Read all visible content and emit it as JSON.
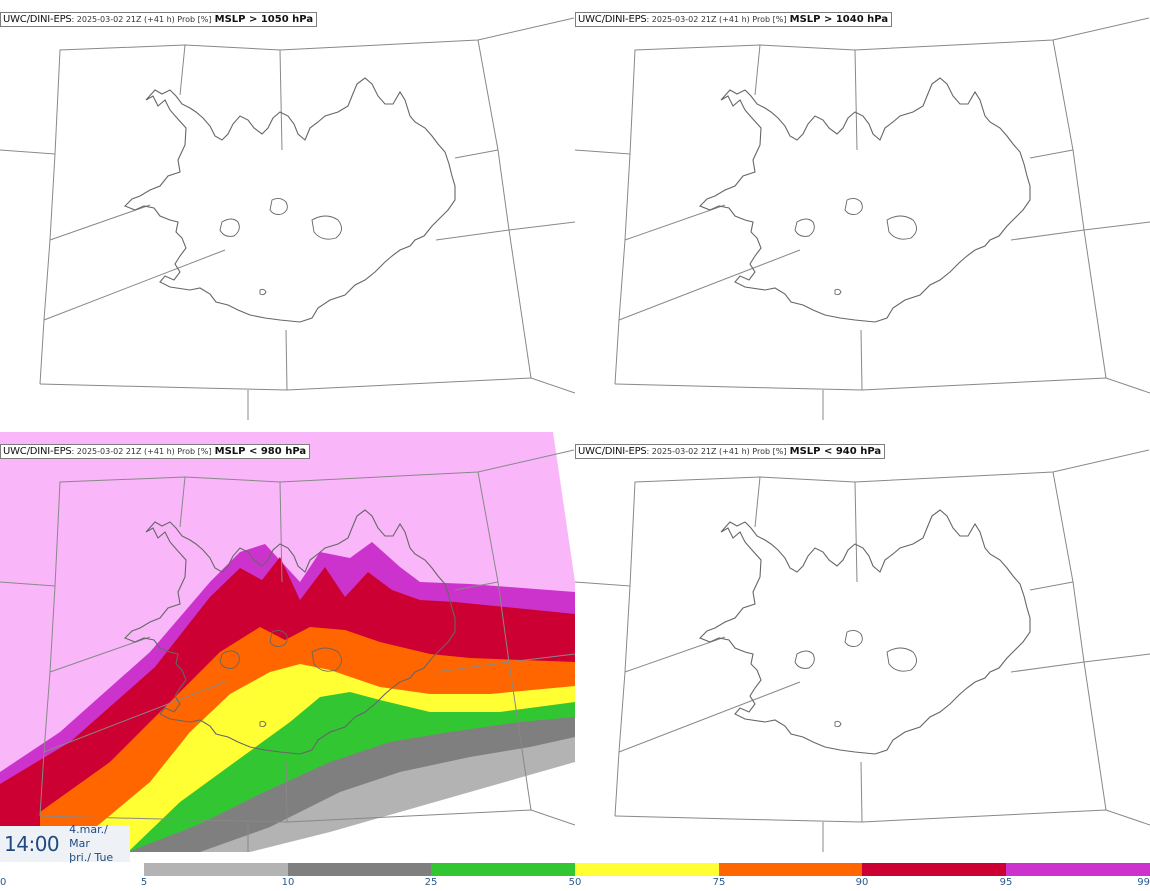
{
  "panels": [
    {
      "model": "UWC/DINI-EPS",
      "meta": ": 2025-03-02 21Z (+41 h) Prob [%]",
      "threshold": "MSLP > 1050 hPa"
    },
    {
      "model": "UWC/DINI-EPS",
      "meta": ": 2025-03-02 21Z (+41 h) Prob [%]",
      "threshold": "MSLP > 1040 hPa"
    },
    {
      "model": "UWC/DINI-EPS",
      "meta": ": 2025-03-02 21Z (+41 h) Prob [%]",
      "threshold": "MSLP < 980 hPa"
    },
    {
      "model": "UWC/DINI-EPS",
      "meta": ": 2025-03-02 21Z (+41 h) Prob [%]",
      "threshold": "MSLP < 940 hPa"
    }
  ],
  "valid_time": {
    "time": "14:00",
    "date_line1": "4.mar./ Mar",
    "date_line2": "þri./ Tue"
  },
  "legend": {
    "ticks": [
      "0",
      "5",
      "10",
      "25",
      "50",
      "75",
      "90",
      "95",
      "99"
    ],
    "colors": [
      "#ffffff",
      "#b3b3b3",
      "#7f7f7f",
      "#33c633",
      "#ffff33",
      "#ff6600",
      "#cc0033",
      "#cc33cc",
      "#f9b6f9"
    ]
  },
  "colors": {
    "outline": "#666666",
    "grid": "#888888"
  }
}
